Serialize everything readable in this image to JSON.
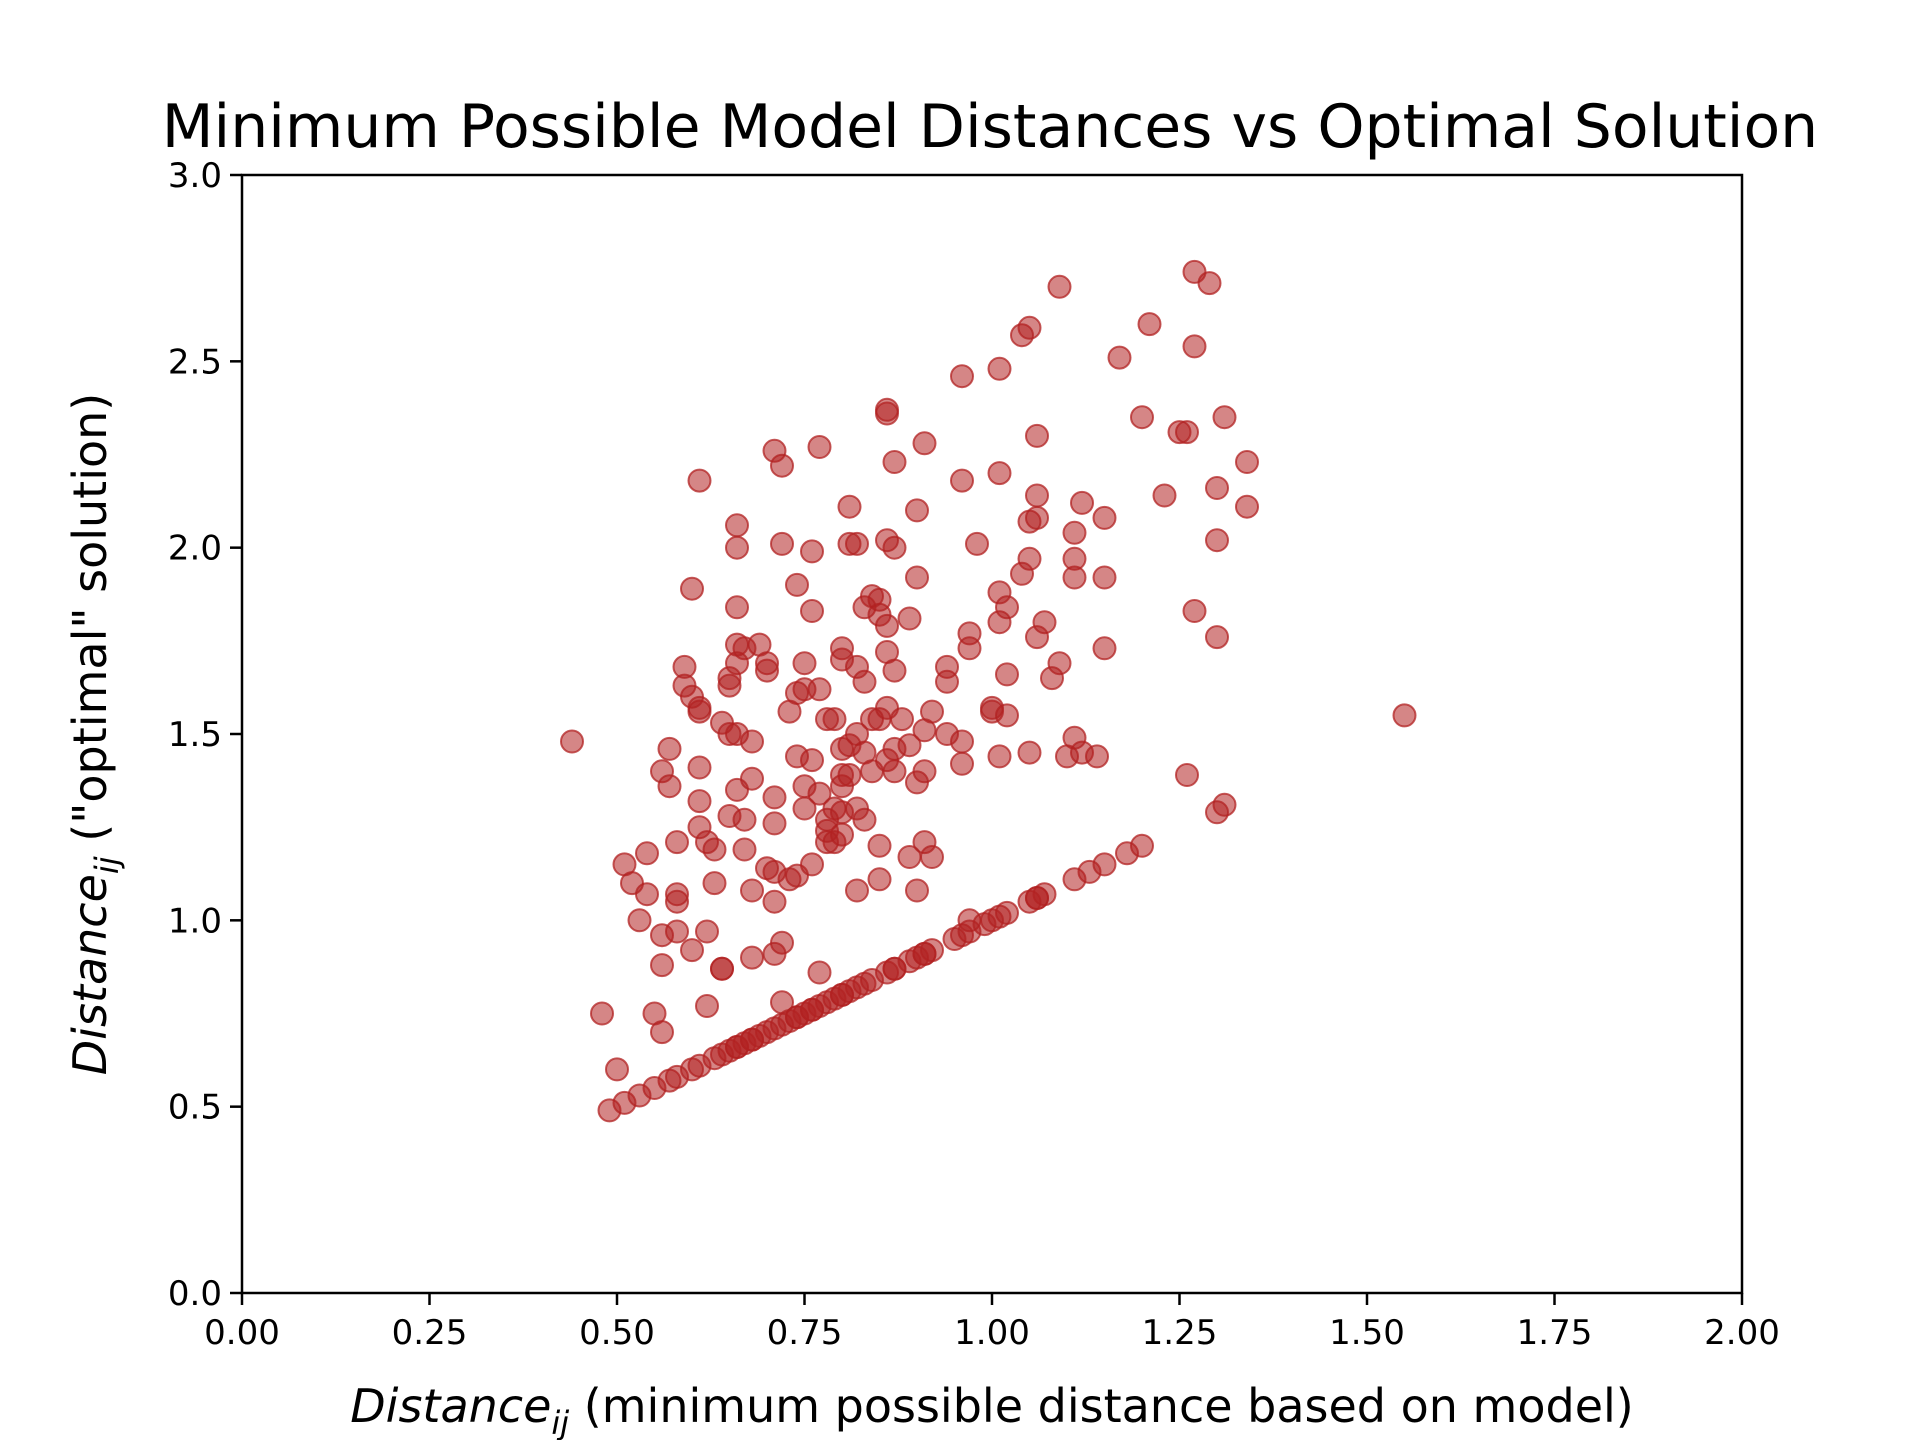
{
  "chart_data": {
    "type": "scatter",
    "title": "Minimum Possible Model Distances vs Optimal Solution",
    "xlabel": {
      "main": "Distance",
      "sub": "ij",
      "rest": " (minimum possible distance based on model)"
    },
    "ylabel": {
      "main": "Distance",
      "sub": "ij",
      "rest": " (\"optimal\" solution)"
    },
    "xlim": [
      0,
      2
    ],
    "ylim": [
      0,
      3
    ],
    "xticks": [
      "0.00",
      "0.25",
      "0.50",
      "0.75",
      "1.00",
      "1.25",
      "1.50",
      "1.75",
      "2.00"
    ],
    "yticks": [
      "0.0",
      "0.5",
      "1.0",
      "1.5",
      "2.0",
      "2.5",
      "3.0"
    ],
    "grid": false,
    "marker_color": "#b22222",
    "marker_opacity": 0.55,
    "points": [
      [
        0.49,
        0.49
      ],
      [
        0.51,
        0.51
      ],
      [
        0.53,
        0.53
      ],
      [
        0.55,
        0.55
      ],
      [
        0.57,
        0.57
      ],
      [
        0.58,
        0.58
      ],
      [
        0.6,
        0.6
      ],
      [
        0.61,
        0.61
      ],
      [
        0.63,
        0.63
      ],
      [
        0.64,
        0.64
      ],
      [
        0.65,
        0.65
      ],
      [
        0.66,
        0.66
      ],
      [
        0.67,
        0.67
      ],
      [
        0.68,
        0.68
      ],
      [
        0.69,
        0.69
      ],
      [
        0.7,
        0.7
      ],
      [
        0.71,
        0.71
      ],
      [
        0.72,
        0.72
      ],
      [
        0.73,
        0.73
      ],
      [
        0.74,
        0.74
      ],
      [
        0.75,
        0.75
      ],
      [
        0.76,
        0.76
      ],
      [
        0.77,
        0.77
      ],
      [
        0.78,
        0.78
      ],
      [
        0.79,
        0.79
      ],
      [
        0.8,
        0.8
      ],
      [
        0.81,
        0.81
      ],
      [
        0.82,
        0.82
      ],
      [
        0.83,
        0.83
      ],
      [
        0.84,
        0.84
      ],
      [
        0.86,
        0.86
      ],
      [
        0.87,
        0.87
      ],
      [
        0.89,
        0.89
      ],
      [
        0.9,
        0.9
      ],
      [
        0.91,
        0.91
      ],
      [
        0.92,
        0.92
      ],
      [
        0.95,
        0.95
      ],
      [
        0.96,
        0.96
      ],
      [
        0.97,
        0.97
      ],
      [
        0.99,
        0.99
      ],
      [
        1.0,
        1.0
      ],
      [
        1.01,
        1.01
      ],
      [
        1.02,
        1.02
      ],
      [
        1.05,
        1.05
      ],
      [
        1.06,
        1.06
      ],
      [
        1.07,
        1.07
      ],
      [
        1.11,
        1.11
      ],
      [
        1.13,
        1.13
      ],
      [
        1.15,
        1.15
      ],
      [
        1.18,
        1.18
      ],
      [
        1.2,
        1.2
      ],
      [
        0.66,
        0.66
      ],
      [
        0.68,
        0.68
      ],
      [
        0.74,
        0.74
      ],
      [
        0.76,
        0.76
      ],
      [
        0.8,
        0.8
      ],
      [
        0.87,
        0.87
      ],
      [
        0.91,
        0.91
      ],
      [
        1.06,
        1.06
      ],
      [
        0.97,
        1.0
      ],
      [
        0.44,
        1.48
      ],
      [
        0.48,
        0.75
      ],
      [
        0.5,
        0.6
      ],
      [
        0.51,
        1.15
      ],
      [
        0.52,
        1.1
      ],
      [
        0.53,
        1.0
      ],
      [
        0.54,
        1.07
      ],
      [
        0.54,
        1.18
      ],
      [
        0.55,
        0.75
      ],
      [
        0.56,
        0.7
      ],
      [
        0.56,
        0.88
      ],
      [
        0.56,
        0.96
      ],
      [
        0.56,
        1.4
      ],
      [
        0.57,
        1.46
      ],
      [
        0.57,
        1.36
      ],
      [
        0.58,
        1.21
      ],
      [
        0.58,
        1.05
      ],
      [
        0.58,
        1.07
      ],
      [
        0.58,
        0.97
      ],
      [
        0.59,
        1.63
      ],
      [
        0.59,
        1.68
      ],
      [
        0.6,
        1.6
      ],
      [
        0.6,
        1.89
      ],
      [
        0.6,
        0.92
      ],
      [
        0.61,
        2.18
      ],
      [
        0.61,
        1.56
      ],
      [
        0.61,
        1.57
      ],
      [
        0.61,
        1.41
      ],
      [
        0.61,
        1.32
      ],
      [
        0.61,
        1.25
      ],
      [
        0.62,
        1.21
      ],
      [
        0.62,
        0.97
      ],
      [
        0.62,
        0.77
      ],
      [
        0.63,
        1.19
      ],
      [
        0.63,
        1.1
      ],
      [
        0.64,
        1.53
      ],
      [
        0.64,
        0.87
      ],
      [
        0.64,
        0.87
      ],
      [
        0.65,
        1.28
      ],
      [
        0.65,
        1.5
      ],
      [
        0.65,
        1.63
      ],
      [
        0.65,
        1.65
      ],
      [
        0.66,
        1.69
      ],
      [
        0.66,
        1.74
      ],
      [
        0.66,
        1.84
      ],
      [
        0.66,
        2.06
      ],
      [
        0.66,
        2.0
      ],
      [
        0.66,
        1.35
      ],
      [
        0.66,
        1.5
      ],
      [
        0.67,
        1.19
      ],
      [
        0.67,
        1.27
      ],
      [
        0.67,
        1.73
      ],
      [
        0.68,
        0.9
      ],
      [
        0.68,
        1.08
      ],
      [
        0.68,
        1.38
      ],
      [
        0.68,
        1.48
      ],
      [
        0.69,
        1.74
      ],
      [
        0.7,
        1.69
      ],
      [
        0.7,
        1.67
      ],
      [
        0.7,
        1.14
      ],
      [
        0.71,
        1.05
      ],
      [
        0.71,
        0.91
      ],
      [
        0.71,
        1.13
      ],
      [
        0.71,
        1.26
      ],
      [
        0.71,
        1.33
      ],
      [
        0.71,
        2.26
      ],
      [
        0.72,
        2.22
      ],
      [
        0.72,
        2.01
      ],
      [
        0.72,
        0.94
      ],
      [
        0.72,
        0.78
      ],
      [
        0.73,
        1.56
      ],
      [
        0.73,
        1.11
      ],
      [
        0.74,
        1.44
      ],
      [
        0.74,
        1.61
      ],
      [
        0.74,
        1.9
      ],
      [
        0.74,
        1.12
      ],
      [
        0.75,
        1.62
      ],
      [
        0.75,
        1.69
      ],
      [
        0.75,
        1.36
      ],
      [
        0.75,
        1.3
      ],
      [
        0.76,
        1.15
      ],
      [
        0.76,
        1.99
      ],
      [
        0.76,
        1.83
      ],
      [
        0.76,
        1.43
      ],
      [
        0.77,
        2.27
      ],
      [
        0.77,
        1.62
      ],
      [
        0.77,
        0.86
      ],
      [
        0.77,
        1.34
      ],
      [
        0.78,
        1.27
      ],
      [
        0.78,
        1.24
      ],
      [
        0.78,
        1.21
      ],
      [
        0.78,
        1.54
      ],
      [
        0.79,
        1.3
      ],
      [
        0.79,
        1.21
      ],
      [
        0.79,
        1.54
      ],
      [
        0.8,
        1.36
      ],
      [
        0.8,
        1.39
      ],
      [
        0.8,
        1.29
      ],
      [
        0.8,
        1.46
      ],
      [
        0.8,
        1.23
      ],
      [
        0.8,
        1.7
      ],
      [
        0.8,
        1.73
      ],
      [
        0.81,
        2.11
      ],
      [
        0.81,
        2.01
      ],
      [
        0.81,
        1.47
      ],
      [
        0.81,
        1.39
      ],
      [
        0.82,
        1.5
      ],
      [
        0.82,
        1.3
      ],
      [
        0.82,
        1.08
      ],
      [
        0.82,
        1.68
      ],
      [
        0.82,
        2.01
      ],
      [
        0.83,
        1.84
      ],
      [
        0.83,
        1.64
      ],
      [
        0.83,
        1.27
      ],
      [
        0.83,
        1.45
      ],
      [
        0.84,
        1.54
      ],
      [
        0.84,
        1.87
      ],
      [
        0.84,
        1.4
      ],
      [
        0.85,
        1.82
      ],
      [
        0.85,
        1.86
      ],
      [
        0.85,
        1.11
      ],
      [
        0.85,
        1.2
      ],
      [
        0.85,
        1.54
      ],
      [
        0.86,
        1.43
      ],
      [
        0.86,
        2.36
      ],
      [
        0.86,
        2.37
      ],
      [
        0.86,
        2.02
      ],
      [
        0.86,
        1.79
      ],
      [
        0.86,
        1.72
      ],
      [
        0.86,
        1.57
      ],
      [
        0.87,
        1.67
      ],
      [
        0.87,
        2.0
      ],
      [
        0.87,
        1.46
      ],
      [
        0.87,
        1.4
      ],
      [
        0.87,
        2.23
      ],
      [
        0.88,
        1.54
      ],
      [
        0.89,
        1.17
      ],
      [
        0.89,
        1.81
      ],
      [
        0.89,
        1.47
      ],
      [
        0.9,
        1.08
      ],
      [
        0.9,
        1.37
      ],
      [
        0.9,
        2.1
      ],
      [
        0.9,
        1.92
      ],
      [
        0.91,
        2.28
      ],
      [
        0.91,
        1.51
      ],
      [
        0.91,
        1.4
      ],
      [
        0.91,
        1.21
      ],
      [
        0.92,
        1.17
      ],
      [
        0.92,
        1.56
      ],
      [
        0.94,
        1.5
      ],
      [
        0.94,
        1.68
      ],
      [
        0.94,
        1.64
      ],
      [
        0.96,
        2.46
      ],
      [
        0.96,
        2.18
      ],
      [
        0.96,
        1.42
      ],
      [
        0.96,
        1.48
      ],
      [
        0.97,
        1.73
      ],
      [
        0.97,
        1.77
      ],
      [
        0.98,
        2.01
      ],
      [
        1.0,
        1.57
      ],
      [
        1.0,
        1.56
      ],
      [
        1.01,
        2.48
      ],
      [
        1.01,
        2.2
      ],
      [
        1.01,
        1.88
      ],
      [
        1.01,
        1.8
      ],
      [
        1.01,
        1.44
      ],
      [
        1.02,
        1.84
      ],
      [
        1.02,
        1.55
      ],
      [
        1.02,
        1.66
      ],
      [
        1.04,
        2.57
      ],
      [
        1.04,
        1.93
      ],
      [
        1.05,
        2.59
      ],
      [
        1.05,
        2.07
      ],
      [
        1.05,
        1.97
      ],
      [
        1.05,
        1.45
      ],
      [
        1.06,
        2.08
      ],
      [
        1.06,
        1.76
      ],
      [
        1.06,
        2.3
      ],
      [
        1.06,
        2.14
      ],
      [
        1.07,
        1.8
      ],
      [
        1.08,
        1.65
      ],
      [
        1.09,
        1.69
      ],
      [
        1.09,
        2.7
      ],
      [
        1.1,
        1.44
      ],
      [
        1.11,
        1.92
      ],
      [
        1.11,
        1.97
      ],
      [
        1.11,
        2.04
      ],
      [
        1.11,
        1.49
      ],
      [
        1.12,
        1.45
      ],
      [
        1.12,
        2.12
      ],
      [
        1.14,
        1.44
      ],
      [
        1.15,
        1.92
      ],
      [
        1.15,
        2.08
      ],
      [
        1.15,
        1.73
      ],
      [
        1.17,
        2.51
      ],
      [
        1.2,
        2.35
      ],
      [
        1.21,
        2.6
      ],
      [
        1.23,
        2.14
      ],
      [
        1.25,
        2.31
      ],
      [
        1.26,
        2.31
      ],
      [
        1.26,
        1.39
      ],
      [
        1.27,
        2.74
      ],
      [
        1.27,
        2.54
      ],
      [
        1.27,
        1.83
      ],
      [
        1.29,
        2.71
      ],
      [
        1.3,
        2.16
      ],
      [
        1.3,
        1.29
      ],
      [
        1.3,
        2.02
      ],
      [
        1.3,
        1.76
      ],
      [
        1.31,
        1.31
      ],
      [
        1.31,
        2.35
      ],
      [
        1.34,
        2.23
      ],
      [
        1.34,
        2.11
      ],
      [
        1.55,
        1.55
      ]
    ]
  }
}
